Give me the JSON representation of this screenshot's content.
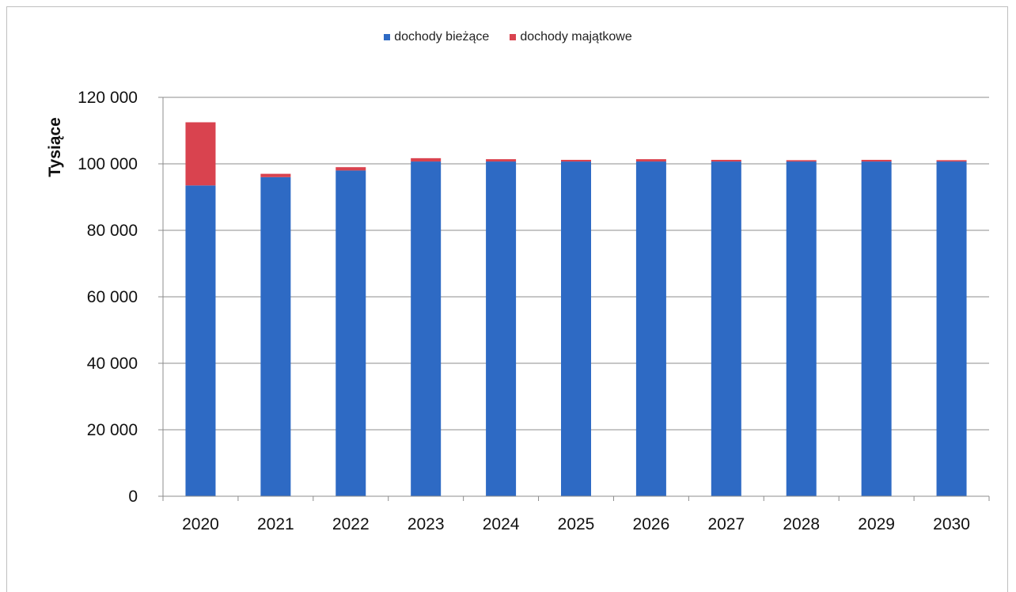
{
  "chart_data": {
    "type": "bar",
    "stacked": true,
    "categories": [
      "2020",
      "2021",
      "2022",
      "2023",
      "2024",
      "2025",
      "2026",
      "2027",
      "2028",
      "2029",
      "2030"
    ],
    "series": [
      {
        "name": "dochody bieżące",
        "color": "#2e6ac4",
        "values": [
          93500,
          96000,
          98000,
          100700,
          100700,
          100700,
          100700,
          100700,
          100700,
          100700,
          100700
        ]
      },
      {
        "name": "dochody majątkowe",
        "color": "#d9434f",
        "values": [
          19000,
          1000,
          1000,
          1000,
          700,
          500,
          700,
          500,
          400,
          500,
          400
        ]
      }
    ],
    "ylabel": "Tysiące",
    "ylim": [
      0,
      120000
    ],
    "yticks": [
      0,
      20000,
      40000,
      60000,
      80000,
      100000,
      120000
    ],
    "ytick_labels": [
      "0",
      "20 000",
      "40 000",
      "60 000",
      "80 000",
      "100 000",
      "120 000"
    ],
    "grid": true,
    "legend_position": "top-center"
  }
}
